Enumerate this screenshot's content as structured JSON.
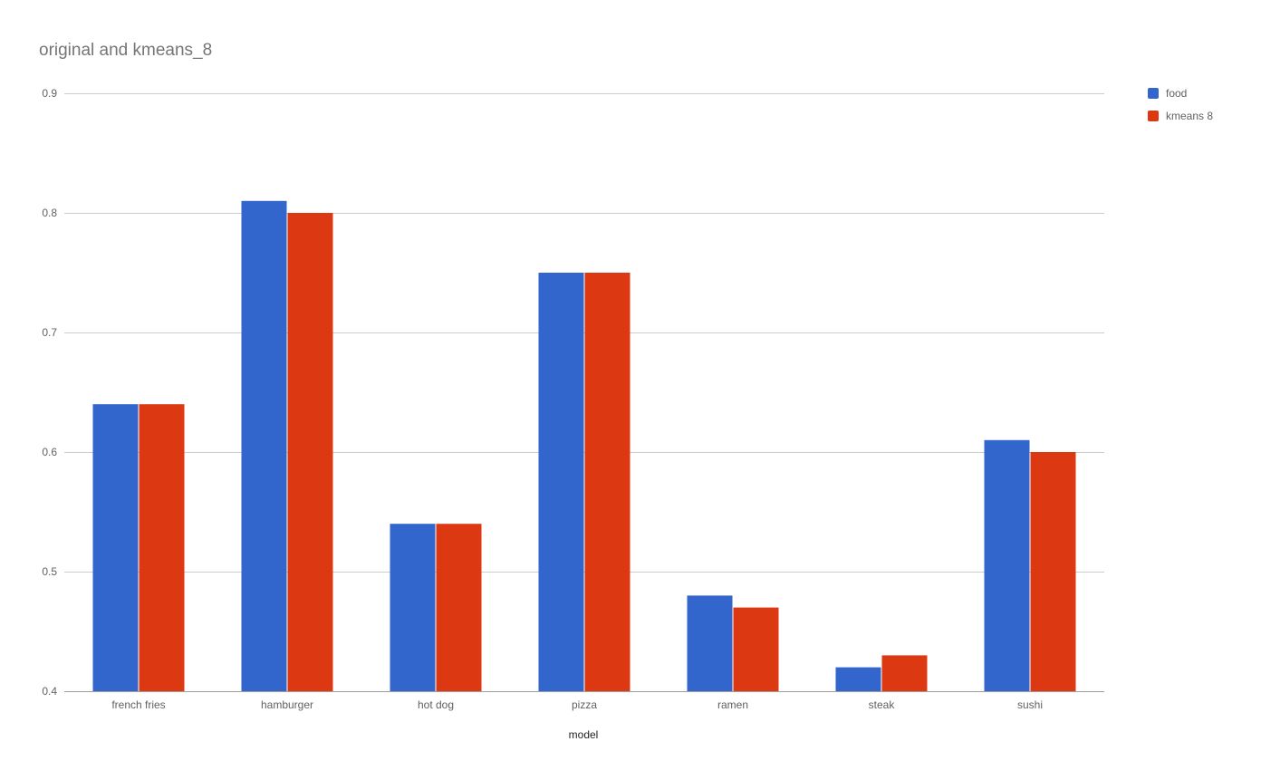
{
  "chart_data": {
    "type": "bar",
    "title": "original and kmeans_8",
    "xlabel": "model",
    "ylabel": "",
    "ylim": [
      0.4,
      0.9
    ],
    "yticks": [
      "0.4",
      "0.5",
      "0.6",
      "0.7",
      "0.8",
      "0.9"
    ],
    "categories": [
      "french fries",
      "hamburger",
      "hot dog",
      "pizza",
      "ramen",
      "steak",
      "sushi"
    ],
    "series": [
      {
        "name": "food",
        "color": "#3366cc",
        "values": [
          0.64,
          0.81,
          0.54,
          0.75,
          0.48,
          0.42,
          0.61
        ]
      },
      {
        "name": "kmeans 8",
        "color": "#dc3912",
        "values": [
          0.64,
          0.8,
          0.54,
          0.75,
          0.47,
          0.43,
          0.6
        ]
      }
    ],
    "grid": true,
    "legend_position": "right"
  }
}
